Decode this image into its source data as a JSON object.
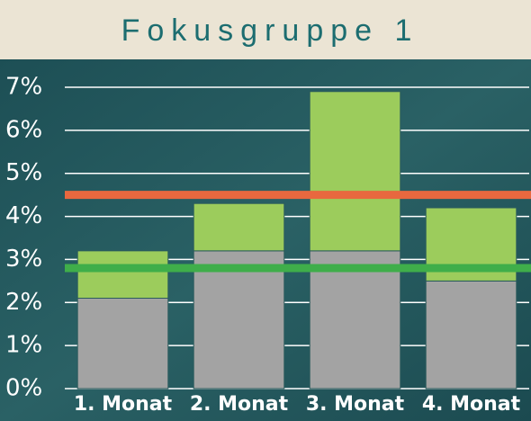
{
  "chart_data": {
    "type": "stacked_bar",
    "title": "Fokusgruppe 1",
    "categories": [
      "1. Monat",
      "2. Monat",
      "3. Monat",
      "4. Monat"
    ],
    "series": [
      {
        "color": "#a3a3a3",
        "values": [
          2.1,
          3.2,
          3.2,
          2.5
        ]
      },
      {
        "color": "#9ccc5c",
        "values": [
          1.1,
          1.1,
          3.7,
          1.7
        ]
      }
    ],
    "reference_lines": [
      {
        "value": 4.5,
        "color": "#e8683f"
      },
      {
        "value": 2.8,
        "color": "#3fae4a"
      }
    ],
    "ylim": [
      0,
      7
    ],
    "yticks": [
      {
        "value": 0,
        "label": "0%"
      },
      {
        "value": 1,
        "label": "1%"
      },
      {
        "value": 2,
        "label": "2%"
      },
      {
        "value": 3,
        "label": "3%"
      },
      {
        "value": 4,
        "label": "4%"
      },
      {
        "value": 5,
        "label": "5%"
      },
      {
        "value": 6,
        "label": "6%"
      },
      {
        "value": 7,
        "label": "7%"
      }
    ],
    "grid": true
  }
}
